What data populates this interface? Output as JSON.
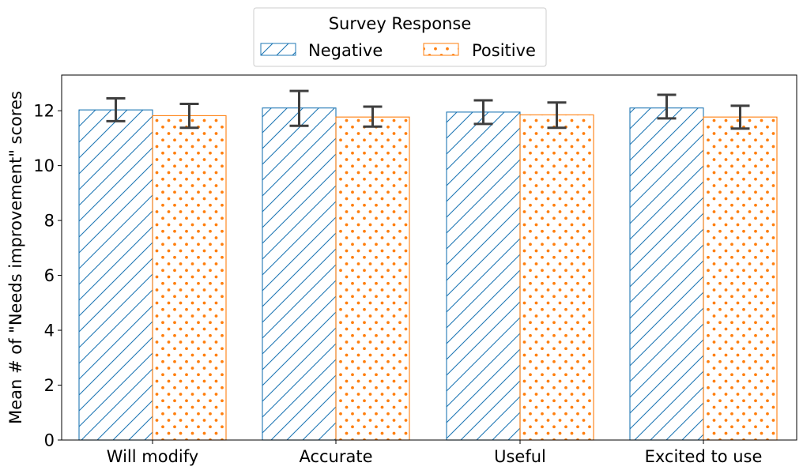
{
  "chart_data": {
    "type": "bar",
    "title": "",
    "xlabel": "",
    "ylabel": "Mean # of \"Needs improvement\" scores",
    "ylim": [
      0,
      13.3
    ],
    "yticks": [
      0,
      2,
      4,
      6,
      8,
      10,
      12
    ],
    "categories": [
      "Will modify",
      "Accurate",
      "Useful",
      "Excited to use"
    ],
    "series": [
      {
        "name": "Negative",
        "values": [
          12.03,
          12.1,
          11.95,
          12.1
        ],
        "err_low": [
          11.62,
          11.45,
          11.52,
          11.72
        ],
        "err_high": [
          12.45,
          12.72,
          12.38,
          12.58
        ],
        "color": "#1f77b4",
        "hatch": "diagonal"
      },
      {
        "name": "Positive",
        "values": [
          11.82,
          11.77,
          11.85,
          11.77
        ],
        "err_low": [
          11.38,
          11.42,
          11.38,
          11.35
        ],
        "err_high": [
          12.25,
          12.15,
          12.3,
          12.18
        ],
        "color": "#ff7f0e",
        "hatch": "dots"
      }
    ],
    "error_bar_color": "#3f3f3f",
    "legend": {
      "title": "Survey Response",
      "placement": "top-center"
    },
    "grid": false
  }
}
